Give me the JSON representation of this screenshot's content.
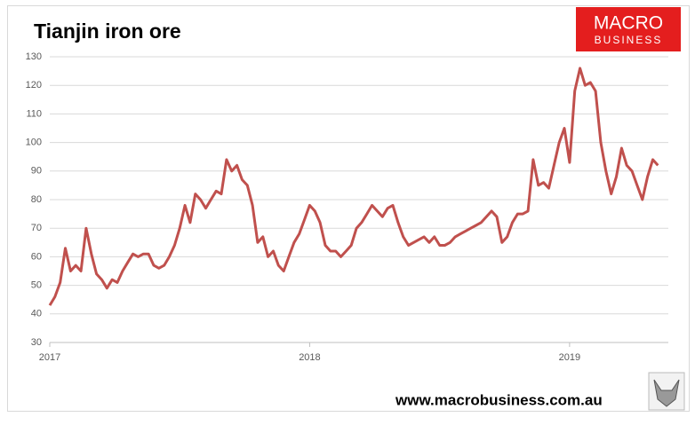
{
  "chart_data": {
    "type": "line",
    "title": "Tianjin iron ore",
    "logo": {
      "line1": "MACRO",
      "line2": "BUSINESS"
    },
    "footer": "www.macrobusiness.com.au",
    "x": [
      2017.0,
      2017.02,
      2017.04,
      2017.06,
      2017.08,
      2017.1,
      2017.12,
      2017.14,
      2017.16,
      2017.18,
      2017.2,
      2017.22,
      2017.24,
      2017.26,
      2017.28,
      2017.3,
      2017.32,
      2017.34,
      2017.36,
      2017.38,
      2017.4,
      2017.42,
      2017.44,
      2017.46,
      2017.48,
      2017.5,
      2017.52,
      2017.54,
      2017.56,
      2017.58,
      2017.6,
      2017.62,
      2017.64,
      2017.66,
      2017.68,
      2017.7,
      2017.72,
      2017.74,
      2017.76,
      2017.78,
      2017.8,
      2017.82,
      2017.84,
      2017.86,
      2017.88,
      2017.9,
      2017.92,
      2017.94,
      2017.96,
      2017.98,
      2018.0,
      2018.02,
      2018.04,
      2018.06,
      2018.08,
      2018.1,
      2018.12,
      2018.14,
      2018.16,
      2018.18,
      2018.2,
      2018.22,
      2018.24,
      2018.26,
      2018.28,
      2018.3,
      2018.32,
      2018.34,
      2018.36,
      2018.38,
      2018.4,
      2018.42,
      2018.44,
      2018.46,
      2018.48,
      2018.5,
      2018.52,
      2018.54,
      2018.56,
      2018.58,
      2018.6,
      2018.62,
      2018.64,
      2018.66,
      2018.68,
      2018.7,
      2018.72,
      2018.74,
      2018.76,
      2018.78,
      2018.8,
      2018.82,
      2018.84,
      2018.86,
      2018.88,
      2018.9,
      2018.92,
      2018.94,
      2018.96,
      2018.98,
      2019.0,
      2019.02,
      2019.04,
      2019.06,
      2019.08,
      2019.1,
      2019.12,
      2019.14,
      2019.16,
      2019.18,
      2019.2,
      2019.22,
      2019.24,
      2019.26,
      2019.28,
      2019.3,
      2019.32,
      2019.34
    ],
    "series": [
      {
        "name": "Tianjin iron ore",
        "color": "#c0504d",
        "values": [
          43,
          46,
          51,
          63,
          55,
          57,
          55,
          70,
          61,
          54,
          52,
          49,
          52,
          51,
          55,
          58,
          61,
          60,
          61,
          61,
          57,
          56,
          57,
          60,
          64,
          70,
          78,
          72,
          82,
          80,
          77,
          80,
          83,
          82,
          94,
          90,
          92,
          87,
          85,
          78,
          65,
          67,
          60,
          62,
          57,
          55,
          60,
          65,
          68,
          73,
          78,
          76,
          72,
          64,
          62,
          62,
          60,
          62,
          64,
          70,
          72,
          75,
          78,
          76,
          74,
          77,
          78,
          72,
          67,
          64,
          65,
          66,
          67,
          65,
          67,
          64,
          64,
          65,
          67,
          68,
          69,
          70,
          71,
          72,
          74,
          76,
          74,
          65,
          67,
          72,
          75,
          75,
          76,
          94,
          85,
          86,
          84,
          92,
          100,
          105,
          93,
          118,
          126,
          120,
          121,
          118,
          100,
          90,
          82,
          88,
          98,
          92,
          90,
          85,
          80,
          88,
          94,
          92
        ]
      }
    ],
    "xlim": [
      2017,
      2019.38
    ],
    "xticks": [
      2017,
      2018,
      2019
    ],
    "ylim": [
      30,
      130
    ],
    "yticks": [
      30,
      40,
      50,
      60,
      70,
      80,
      90,
      100,
      110,
      120,
      130
    ],
    "grid": true
  }
}
